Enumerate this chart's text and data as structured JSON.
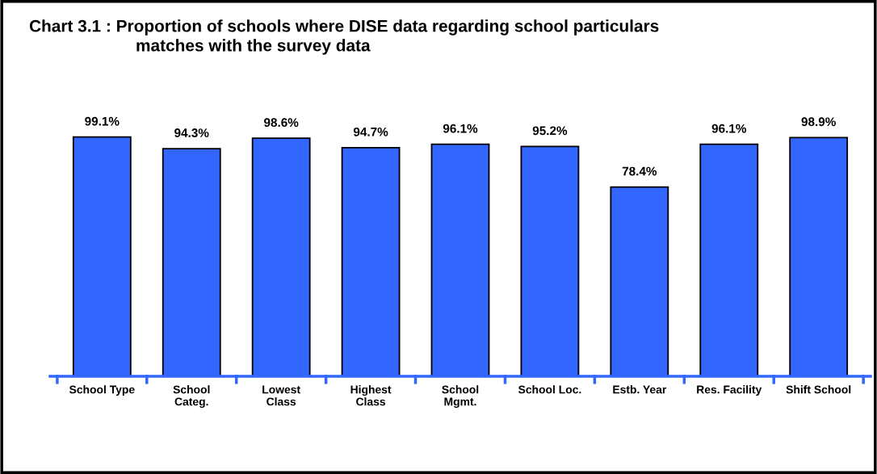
{
  "chart_data": {
    "type": "bar",
    "title": "Chart 3.1 : Proportion of schools where DISE data regarding school particulars\nmatches with the survey data",
    "categories": [
      "School Type",
      "School\nCateg.",
      "Lowest\nClass",
      "Highest\nClass",
      "School\nMgmt.",
      "School Loc.",
      "Estb. Year",
      "Res. Facility",
      "Shift School"
    ],
    "values": [
      99.1,
      94.3,
      98.6,
      94.7,
      96.1,
      95.2,
      78.4,
      96.1,
      98.9
    ],
    "value_labels": [
      "99.1%",
      "94.3%",
      "98.6%",
      "94.7%",
      "96.1%",
      "95.2%",
      "78.4%",
      "96.1%",
      "98.9%"
    ],
    "color": "#3366ff",
    "grid": false,
    "legend": false
  }
}
